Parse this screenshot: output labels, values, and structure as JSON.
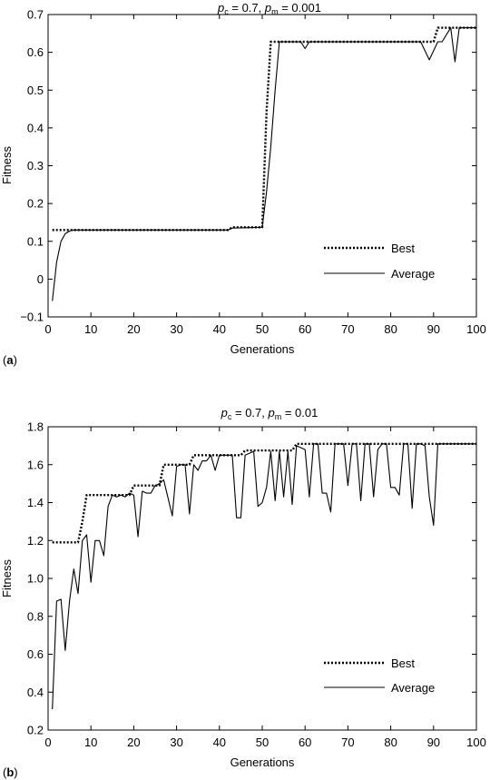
{
  "chart_data": [
    {
      "type": "line",
      "panel_label": "a",
      "title": {
        "main": "p",
        "sub1": "c",
        "mid": " = 0.7, ",
        "main2": "p",
        "sub2": "m",
        "tail": " = 0.001"
      },
      "xlabel": "Generations",
      "ylabel": "Fitness",
      "xlim": [
        0,
        100
      ],
      "ylim": [
        -0.1,
        0.7
      ],
      "xticks": [
        "0",
        "10",
        "20",
        "30",
        "40",
        "50",
        "60",
        "70",
        "80",
        "90",
        "100"
      ],
      "yticks": [
        "−0.1",
        "0",
        "0.1",
        "0.2",
        "0.3",
        "0.4",
        "0.5",
        "0.6",
        "0.7"
      ],
      "legend_position": "lower-right",
      "series": [
        {
          "name": "Best",
          "style": "dotted",
          "points": [
            [
              1,
              0.13
            ],
            [
              5,
              0.13
            ],
            [
              42,
              0.13
            ],
            [
              43,
              0.137
            ],
            [
              50,
              0.137
            ],
            [
              51,
              0.44
            ],
            [
              52,
              0.628
            ],
            [
              60,
              0.628
            ],
            [
              88,
              0.628
            ],
            [
              90,
              0.628
            ],
            [
              91,
              0.665
            ],
            [
              100,
              0.665
            ]
          ]
        },
        {
          "name": "Average",
          "style": "solid",
          "points": [
            [
              1,
              -0.058
            ],
            [
              2,
              0.045
            ],
            [
              3,
              0.1
            ],
            [
              4,
              0.12
            ],
            [
              5,
              0.127
            ],
            [
              6,
              0.13
            ],
            [
              20,
              0.13
            ],
            [
              40,
              0.13
            ],
            [
              42,
              0.13
            ],
            [
              43,
              0.135
            ],
            [
              50,
              0.137
            ],
            [
              51,
              0.23
            ],
            [
              52,
              0.35
            ],
            [
              53,
              0.5
            ],
            [
              54,
              0.628
            ],
            [
              59,
              0.628
            ],
            [
              60,
              0.61
            ],
            [
              61,
              0.628
            ],
            [
              87,
              0.628
            ],
            [
              89,
              0.58
            ],
            [
              91,
              0.628
            ],
            [
              92,
              0.628
            ],
            [
              94,
              0.665
            ],
            [
              95,
              0.575
            ],
            [
              96,
              0.665
            ],
            [
              100,
              0.665
            ]
          ]
        }
      ]
    },
    {
      "type": "line",
      "panel_label": "b",
      "title": {
        "main": "p",
        "sub1": "c",
        "mid": " = 0.7, ",
        "main2": "p",
        "sub2": "m",
        "tail": " = 0.01"
      },
      "xlabel": "Generations",
      "ylabel": "Fitness",
      "xlim": [
        0,
        100
      ],
      "ylim": [
        0.2,
        1.8
      ],
      "xticks": [
        "0",
        "10",
        "20",
        "30",
        "40",
        "50",
        "60",
        "70",
        "80",
        "90",
        "100"
      ],
      "yticks": [
        "0.2",
        "0.4",
        "0.6",
        "0.8",
        "1.0",
        "1.2",
        "1.4",
        "1.6",
        "1.8"
      ],
      "legend_position": "lower-right",
      "series": [
        {
          "name": "Best",
          "style": "dotted",
          "points": [
            [
              1,
              1.19
            ],
            [
              7,
              1.19
            ],
            [
              8,
              1.3
            ],
            [
              9,
              1.44
            ],
            [
              19,
              1.44
            ],
            [
              20,
              1.49
            ],
            [
              26,
              1.49
            ],
            [
              27,
              1.6
            ],
            [
              33,
              1.6
            ],
            [
              34,
              1.65
            ],
            [
              45,
              1.65
            ],
            [
              46,
              1.675
            ],
            [
              57,
              1.675
            ],
            [
              58,
              1.71
            ],
            [
              100,
              1.71
            ]
          ]
        },
        {
          "name": "Average",
          "style": "solid",
          "points": [
            [
              1,
              0.31
            ],
            [
              2,
              0.88
            ],
            [
              3,
              0.89
            ],
            [
              4,
              0.62
            ],
            [
              5,
              0.88
            ],
            [
              6,
              1.05
            ],
            [
              7,
              0.92
            ],
            [
              8,
              1.2
            ],
            [
              9,
              1.23
            ],
            [
              10,
              0.98
            ],
            [
              11,
              1.2
            ],
            [
              12,
              1.2
            ],
            [
              13,
              1.12
            ],
            [
              14,
              1.38
            ],
            [
              15,
              1.44
            ],
            [
              16,
              1.43
            ],
            [
              17,
              1.44
            ],
            [
              18,
              1.43
            ],
            [
              19,
              1.45
            ],
            [
              20,
              1.44
            ],
            [
              21,
              1.22
            ],
            [
              22,
              1.46
            ],
            [
              23,
              1.45
            ],
            [
              24,
              1.45
            ],
            [
              25,
              1.49
            ],
            [
              26,
              1.5
            ],
            [
              27,
              1.52
            ],
            [
              29,
              1.33
            ],
            [
              30,
              1.59
            ],
            [
              31,
              1.6
            ],
            [
              32,
              1.6
            ],
            [
              33,
              1.34
            ],
            [
              34,
              1.6
            ],
            [
              35,
              1.57
            ],
            [
              36,
              1.62
            ],
            [
              37,
              1.62
            ],
            [
              38,
              1.65
            ],
            [
              39,
              1.57
            ],
            [
              40,
              1.65
            ],
            [
              43,
              1.65
            ],
            [
              44,
              1.32
            ],
            [
              45,
              1.32
            ],
            [
              46,
              1.65
            ],
            [
              48,
              1.67
            ],
            [
              49,
              1.38
            ],
            [
              50,
              1.4
            ],
            [
              51,
              1.48
            ],
            [
              52,
              1.67
            ],
            [
              53,
              1.41
            ],
            [
              54,
              1.67
            ],
            [
              55,
              1.43
            ],
            [
              56,
              1.67
            ],
            [
              57,
              1.39
            ],
            [
              58,
              1.7
            ],
            [
              60,
              1.68
            ],
            [
              61,
              1.43
            ],
            [
              62,
              1.71
            ],
            [
              63,
              1.71
            ],
            [
              64,
              1.45
            ],
            [
              65,
              1.45
            ],
            [
              66,
              1.35
            ],
            [
              67,
              1.71
            ],
            [
              68,
              1.71
            ],
            [
              69,
              1.71
            ],
            [
              70,
              1.49
            ],
            [
              71,
              1.71
            ],
            [
              72,
              1.71
            ],
            [
              73,
              1.41
            ],
            [
              74,
              1.71
            ],
            [
              75,
              1.71
            ],
            [
              76,
              1.43
            ],
            [
              77,
              1.68
            ],
            [
              78,
              1.71
            ],
            [
              79,
              1.71
            ],
            [
              80,
              1.48
            ],
            [
              81,
              1.48
            ],
            [
              82,
              1.44
            ],
            [
              83,
              1.71
            ],
            [
              84,
              1.71
            ],
            [
              85,
              1.37
            ],
            [
              86,
              1.71
            ],
            [
              87,
              1.71
            ],
            [
              88,
              1.7
            ],
            [
              89,
              1.43
            ],
            [
              90,
              1.28
            ],
            [
              91,
              1.71
            ],
            [
              100,
              1.71
            ]
          ]
        }
      ]
    }
  ]
}
